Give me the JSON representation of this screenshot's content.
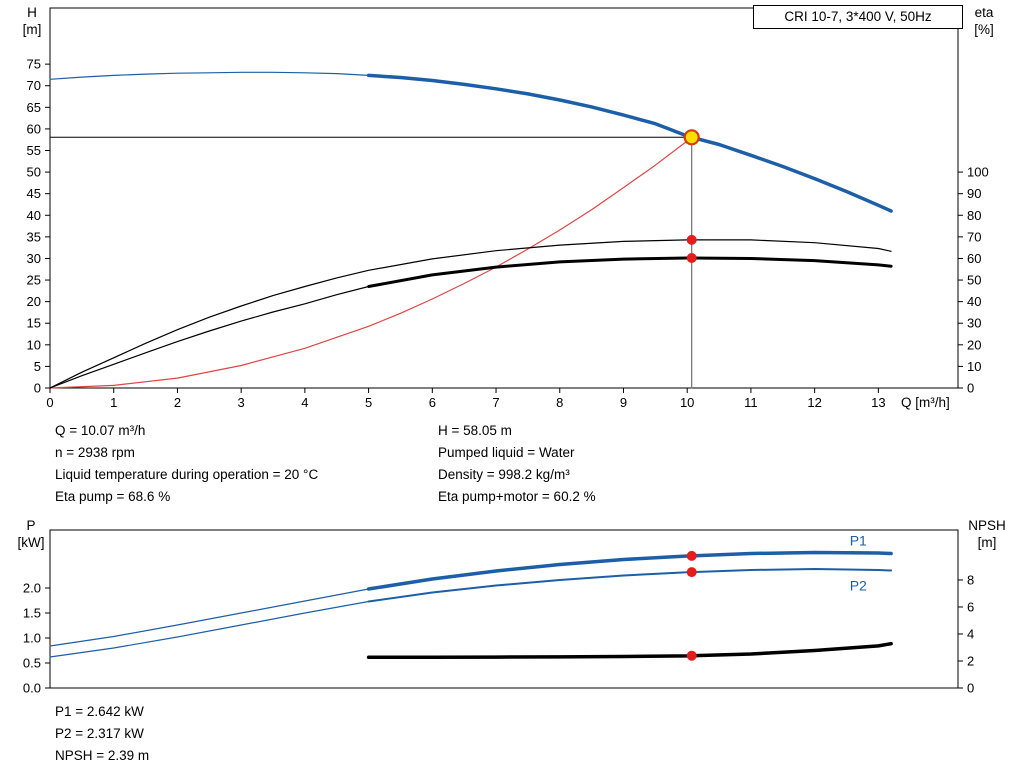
{
  "chart_data": [
    {
      "type": "line",
      "title": "CRI 10-7, 3*400 V, 50Hz",
      "xlabel": "Q [m³/h]",
      "ylabel_left_lines": [
        "H",
        "[m]"
      ],
      "ylabel_right_lines": [
        "eta",
        "[%]"
      ],
      "x_range": [
        0,
        14.25
      ],
      "y_left_range": [
        0,
        88
      ],
      "y_right_range": [
        0,
        176
      ],
      "x_ticks": [
        "0",
        "1",
        "2",
        "3",
        "4",
        "5",
        "6",
        "7",
        "8",
        "9",
        "10",
        "11",
        "12",
        "13"
      ],
      "y_left_ticks": [
        "0",
        "5",
        "10",
        "15",
        "20",
        "25",
        "30",
        "35",
        "40",
        "45",
        "50",
        "55",
        "60",
        "65",
        "70",
        "75"
      ],
      "y_right_ticks": [
        "0",
        "10",
        "20",
        "30",
        "40",
        "50",
        "60",
        "70",
        "80",
        "90",
        "100"
      ],
      "grid": false,
      "legend": "none",
      "duty_point": {
        "q": 10.07,
        "h": 58.05
      },
      "series": [
        {
          "key": "duty-head-line",
          "name": "Duty head line",
          "axis": "left",
          "color": "#000000",
          "width": 1,
          "x": [
            0,
            10.07
          ],
          "y": [
            58.05,
            58.05
          ]
        },
        {
          "key": "duty-flow-line",
          "name": "Duty flow line",
          "axis": "left",
          "color": "#707070",
          "width": 1.2,
          "x": [
            10.07,
            10.07
          ],
          "y": [
            0,
            58.05
          ]
        },
        {
          "key": "system-curve",
          "name": "System curve",
          "axis": "left",
          "color": "#e04545",
          "width": 1.2,
          "x": [
            0,
            1,
            2,
            3,
            4,
            5,
            5.5,
            6,
            6.5,
            7,
            7.5,
            8,
            8.5,
            9,
            9.5,
            10,
            10.07
          ],
          "y": [
            0,
            0.6,
            2.3,
            5.2,
            9.2,
            14.3,
            17.3,
            20.6,
            24.2,
            28.0,
            32.2,
            36.6,
            41.3,
            46.4,
            51.6,
            57.2,
            58.05
          ]
        },
        {
          "key": "eta-pump-curve",
          "name": "Eta pump",
          "axis": "right",
          "color": "#000000",
          "width": 1.2,
          "x": [
            0,
            0.5,
            1,
            1.5,
            2,
            2.5,
            3,
            3.5,
            4,
            4.5,
            5,
            6,
            7,
            8,
            9,
            10,
            10.07,
            11,
            12,
            13,
            13.2
          ],
          "y": [
            0,
            7.3,
            14,
            20.7,
            27,
            32.8,
            38,
            42.8,
            47,
            51,
            54.5,
            59.8,
            63.6,
            66.2,
            67.9,
            68.6,
            68.6,
            68.6,
            67.3,
            64.6,
            63.3
          ]
        },
        {
          "key": "eta-motor-curve-lowflow",
          "name": "Eta pump+motor (low flow)",
          "axis": "right",
          "color": "#000000",
          "width": 1.2,
          "x": [
            0,
            0.5,
            1,
            1.5,
            2,
            2.5,
            3,
            3.5,
            4,
            4.5,
            5
          ],
          "y": [
            0,
            5.7,
            11,
            16.3,
            21.5,
            26.4,
            31,
            35.2,
            39,
            43.2,
            47
          ]
        },
        {
          "key": "eta-motor-curve",
          "name": "Eta pump+motor",
          "axis": "right",
          "color": "#000000",
          "width": 3,
          "x": [
            5,
            6,
            7,
            8,
            9,
            10,
            10.07,
            11,
            12,
            13,
            13.2
          ],
          "y": [
            47,
            52.4,
            56,
            58.4,
            59.7,
            60.2,
            60.2,
            60.0,
            59.0,
            57.0,
            56.4
          ]
        },
        {
          "key": "qh-curve-lowflow",
          "name": "H-Q curve (low flow)",
          "axis": "left",
          "color": "#1c5fa8",
          "width": 1.2,
          "x": [
            0,
            0.5,
            1,
            1.5,
            2,
            2.5,
            3,
            3.5,
            4,
            4.5,
            5
          ],
          "y": [
            71.5,
            72.0,
            72.4,
            72.7,
            72.9,
            73.0,
            73.1,
            73.1,
            73.0,
            72.8,
            72.4
          ]
        },
        {
          "key": "qh-curve",
          "name": "H-Q curve",
          "axis": "left",
          "color": "#1c5fa8",
          "width": 3.5,
          "x": [
            5,
            5.5,
            6,
            6.5,
            7,
            7.5,
            8,
            8.5,
            9,
            9.5,
            10,
            10.07,
            10.5,
            11,
            11.5,
            12,
            12.5,
            13,
            13.2
          ],
          "y": [
            72.4,
            71.9,
            71.2,
            70.3,
            69.3,
            68.1,
            66.7,
            65.1,
            63.2,
            61.2,
            58.35,
            58.05,
            56.4,
            53.9,
            51.3,
            48.5,
            45.5,
            42.3,
            41.0
          ]
        }
      ],
      "markers": [
        {
          "key": "duty-point-marker",
          "x": 10.07,
          "y": 58.05,
          "axis": "left",
          "r": 7,
          "fill": "#ffdf00",
          "stroke": "#d93a00",
          "stroke_width": 2.2
        },
        {
          "key": "eta-pump-duty-dot",
          "x": 10.07,
          "y": 68.6,
          "axis": "right",
          "r": 5,
          "fill": "#e51c1c"
        },
        {
          "key": "eta-motor-duty-dot",
          "x": 10.07,
          "y": 60.2,
          "axis": "right",
          "r": 5,
          "fill": "#e51c1c"
        }
      ],
      "series_labels": []
    },
    {
      "type": "line",
      "title": "",
      "xlabel": "",
      "ylabel_left_lines": [
        "P",
        "[kW]"
      ],
      "ylabel_right_lines": [
        "NPSH",
        "[m]"
      ],
      "x_range": [
        0,
        14.25
      ],
      "y_left_range": [
        0,
        3.16
      ],
      "y_right_range": [
        0,
        11.7
      ],
      "x_ticks": [],
      "y_left_ticks": [
        "0.0",
        "0.5",
        "1.0",
        "1.5",
        "2.0"
      ],
      "y_right_ticks": [
        "0",
        "2",
        "4",
        "6",
        "8"
      ],
      "grid": false,
      "legend": "inline",
      "series": [
        {
          "key": "p1-curve-lowflow",
          "name": "P1 (low flow)",
          "axis": "left",
          "color": "#1c5fa8",
          "width": 1.2,
          "x": [
            0,
            1,
            2,
            3,
            4,
            5
          ],
          "y": [
            0.84,
            1.03,
            1.26,
            1.5,
            1.74,
            1.98
          ]
        },
        {
          "key": "p2-curve-lowflow",
          "name": "P2 (low flow)",
          "axis": "left",
          "color": "#1c5fa8",
          "width": 1.2,
          "x": [
            0,
            1,
            2,
            3,
            4,
            5
          ],
          "y": [
            0.62,
            0.8,
            1.02,
            1.26,
            1.5,
            1.73
          ]
        },
        {
          "key": "p2-curve",
          "name": "P2",
          "axis": "left",
          "color": "#1c5fa8",
          "width": 2,
          "x": [
            5,
            6,
            7,
            8,
            9,
            10,
            10.07,
            11,
            12,
            13,
            13.2
          ],
          "y": [
            1.73,
            1.91,
            2.05,
            2.16,
            2.25,
            2.315,
            2.317,
            2.36,
            2.38,
            2.36,
            2.35
          ]
        },
        {
          "key": "p1-curve",
          "name": "P1",
          "axis": "left",
          "color": "#1c5fa8",
          "width": 3.5,
          "x": [
            5,
            6,
            7,
            8,
            9,
            10,
            10.07,
            11,
            12,
            13,
            13.2
          ],
          "y": [
            1.98,
            2.18,
            2.34,
            2.47,
            2.57,
            2.64,
            2.642,
            2.69,
            2.71,
            2.7,
            2.69
          ]
        },
        {
          "key": "npsh-curve",
          "name": "NPSH",
          "axis": "right",
          "color": "#000000",
          "width": 3.5,
          "x": [
            5,
            6,
            7,
            8,
            9,
            10,
            10.07,
            11,
            12,
            13,
            13.2
          ],
          "y": [
            2.28,
            2.28,
            2.29,
            2.3,
            2.33,
            2.38,
            2.39,
            2.52,
            2.78,
            3.12,
            3.28
          ]
        }
      ],
      "markers": [
        {
          "key": "p1-duty-dot",
          "x": 10.07,
          "y": 2.642,
          "axis": "left",
          "r": 5,
          "fill": "#e51c1c"
        },
        {
          "key": "p2-duty-dot",
          "x": 10.07,
          "y": 2.317,
          "axis": "left",
          "r": 5,
          "fill": "#e51c1c"
        },
        {
          "key": "npsh-duty-dot",
          "x": 10.07,
          "y": 2.39,
          "axis": "right",
          "r": 5,
          "fill": "#e51c1c"
        }
      ],
      "series_labels": [
        {
          "key": "p1-curve-label",
          "text": "P1",
          "x": 12.55,
          "y": 2.85,
          "axis": "left",
          "color": "#1c5fa8"
        },
        {
          "key": "p2-curve-label",
          "text": "P2",
          "x": 12.55,
          "y": 1.95,
          "axis": "left",
          "color": "#1c5fa8"
        }
      ]
    }
  ],
  "duty_info": {
    "left": [
      "Q = 10.07 m³/h",
      "n = 2938 rpm",
      "Liquid temperature during operation = 20 °C",
      "Eta pump = 68.6 %"
    ],
    "right": [
      "H = 58.05 m",
      "Pumped liquid = Water",
      "Density = 998.2 kg/m³",
      "Eta pump+motor = 60.2 %"
    ]
  },
  "power_info": [
    "P1 = 2.642 kW",
    "P2 = 2.317 kW",
    "NPSH = 2.39 m"
  ],
  "colors": {
    "curve_blue": "#1c5fa8",
    "curve_black": "#000000",
    "system_red": "#e04545",
    "duty_dot_red": "#e51c1c",
    "duty_marker_yellow": "#ffdf00",
    "duty_marker_ring": "#d93a00",
    "duty_line_gray": "#707070"
  }
}
